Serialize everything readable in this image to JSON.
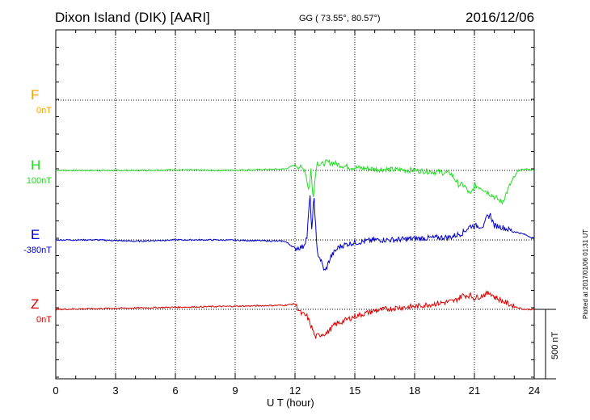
{
  "header": {
    "station": "Dixon Island (DIK)  [AARI]",
    "coords": "GG ( 73.55°,  80.57°)",
    "date": "2016/12/06"
  },
  "plotted_at": "Plotted at 2017/01/06 01:31 UT",
  "scale_label": "500 nT",
  "colors": {
    "F": "#f5a000",
    "H": "#22dd22",
    "E": "#0000cc",
    "Z": "#dd0000",
    "grid": "#000000"
  },
  "channels": [
    {
      "letter": "F",
      "base": "0nT"
    },
    {
      "letter": "H",
      "base": "100nT"
    },
    {
      "letter": "E",
      "base": "-380nT"
    },
    {
      "letter": "Z",
      "base": "0nT"
    }
  ],
  "chart_data": {
    "type": "line",
    "title": "Dixon Island (DIK)  [AARI]",
    "xlabel": "U T (hour)",
    "xlim": [
      0,
      24
    ],
    "xticks": [
      "0",
      "3",
      "6",
      "9",
      "12",
      "15",
      "18",
      "21",
      "24"
    ],
    "grid": true,
    "units_per_panel": "500 nT",
    "series": [
      {
        "name": "F",
        "baseline": "0nT",
        "x": [
          0,
          24
        ],
        "values": [
          null,
          null
        ]
      },
      {
        "name": "H",
        "baseline": "100nT",
        "x": [
          0,
          2,
          4,
          6,
          8,
          10,
          11.5,
          12.0,
          12.5,
          12.7,
          12.8,
          12.9,
          13.1,
          13.3,
          13.6,
          14.0,
          14.5,
          15.0,
          16,
          17,
          18,
          19,
          19.8,
          20.2,
          20.5,
          20.8,
          21.0,
          21.3,
          21.6,
          22.0,
          22.4,
          22.8,
          23.2,
          23.6,
          24
        ],
        "values": [
          0,
          0,
          0,
          5,
          0,
          5,
          10,
          40,
          5,
          -150,
          10,
          -200,
          60,
          40,
          60,
          50,
          30,
          20,
          10,
          5,
          0,
          -10,
          -20,
          -100,
          -110,
          -180,
          -110,
          -120,
          -150,
          -190,
          -230,
          -100,
          0,
          10,
          0
        ]
      },
      {
        "name": "E",
        "baseline": "-380nT",
        "x": [
          0,
          2,
          4,
          6,
          8,
          10,
          11.5,
          12.0,
          12.4,
          12.6,
          12.75,
          12.85,
          12.95,
          13.1,
          13.3,
          13.5,
          13.8,
          14.2,
          14.6,
          15.0,
          15.5,
          16,
          17,
          18,
          19,
          19.8,
          20.4,
          20.8,
          21.1,
          21.5,
          21.6,
          21.8,
          22.0,
          22.2,
          22.6,
          23.0,
          23.5,
          24
        ],
        "values": [
          0,
          0,
          -10,
          0,
          0,
          -5,
          -10,
          -60,
          -50,
          20,
          330,
          50,
          330,
          -80,
          -150,
          -230,
          -120,
          -50,
          -30,
          -20,
          -10,
          0,
          0,
          10,
          15,
          20,
          50,
          100,
          100,
          100,
          160,
          180,
          100,
          100,
          80,
          60,
          40,
          10
        ]
      },
      {
        "name": "Z",
        "baseline": "0nT",
        "x": [
          0,
          2,
          4,
          6,
          8,
          10,
          11.5,
          12.0,
          12.3,
          12.6,
          12.9,
          13.0,
          13.3,
          13.6,
          14.0,
          14.5,
          15.0,
          16,
          17,
          18,
          19,
          20.0,
          20.4,
          20.8,
          21.0,
          21.4,
          21.8,
          22.0,
          22.4,
          23.0,
          23.5,
          24
        ],
        "values": [
          0,
          5,
          10,
          15,
          20,
          25,
          30,
          40,
          -30,
          -50,
          -150,
          -200,
          -180,
          -170,
          -110,
          -80,
          -50,
          -10,
          10,
          20,
          40,
          60,
          100,
          100,
          80,
          100,
          120,
          90,
          60,
          20,
          0,
          0
        ]
      }
    ]
  }
}
